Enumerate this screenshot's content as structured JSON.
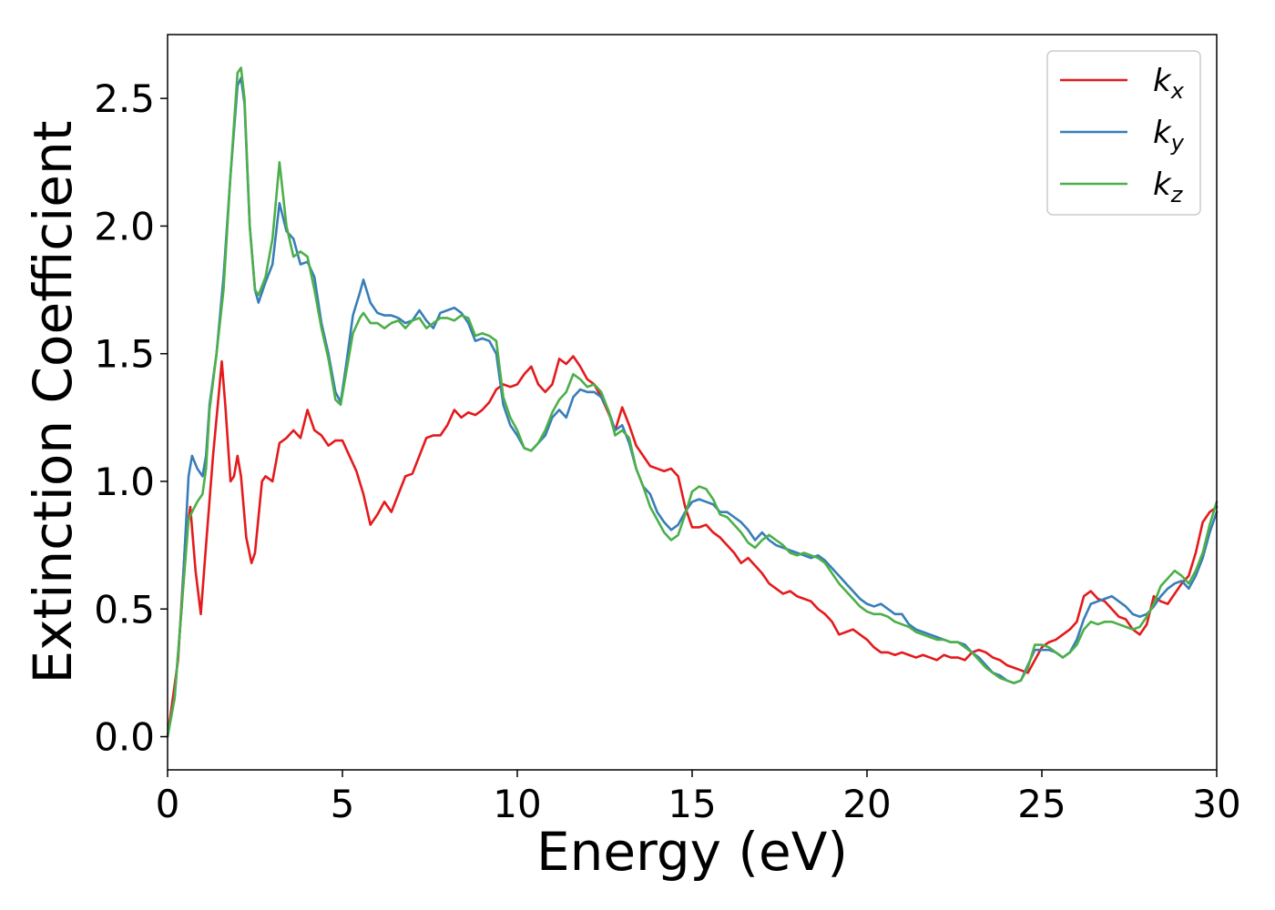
{
  "chart_data": {
    "type": "line",
    "title": "",
    "xlabel": "Energy (eV)",
    "ylabel": "Extinction Coefficient",
    "xlim": [
      0,
      30
    ],
    "ylim": [
      -0.13,
      2.75
    ],
    "x_ticks": [
      0,
      5,
      10,
      15,
      20,
      25,
      30
    ],
    "y_ticks": [
      0.0,
      0.5,
      1.0,
      1.5,
      2.0,
      2.5
    ],
    "x_tick_labels": [
      "0",
      "5",
      "10",
      "15",
      "20",
      "25",
      "30"
    ],
    "y_tick_labels": [
      "0.0",
      "0.5",
      "1.0",
      "1.5",
      "2.0",
      "2.5"
    ],
    "grid": false,
    "legend_position": "top-right",
    "series": [
      {
        "name": "k",
        "subscript": "x",
        "color": "#e41a1c",
        "x": [
          0,
          0.3,
          0.5,
          0.65,
          0.8,
          0.95,
          1.1,
          1.3,
          1.45,
          1.55,
          1.65,
          1.8,
          1.9,
          2.0,
          2.1,
          2.25,
          2.4,
          2.5,
          2.7,
          2.8,
          3.0,
          3.2,
          3.4,
          3.6,
          3.8,
          4.0,
          4.2,
          4.4,
          4.6,
          4.8,
          5.0,
          5.2,
          5.4,
          5.6,
          5.8,
          6.0,
          6.2,
          6.4,
          6.6,
          6.8,
          7.0,
          7.2,
          7.4,
          7.6,
          7.8,
          8.0,
          8.2,
          8.4,
          8.6,
          8.8,
          9.0,
          9.2,
          9.4,
          9.6,
          9.8,
          10.0,
          10.2,
          10.4,
          10.6,
          10.8,
          11.0,
          11.2,
          11.4,
          11.6,
          11.8,
          12.0,
          12.2,
          12.4,
          12.6,
          12.8,
          13.0,
          13.2,
          13.4,
          13.6,
          13.8,
          14.0,
          14.2,
          14.4,
          14.6,
          14.8,
          15.0,
          15.2,
          15.4,
          15.6,
          15.8,
          16.0,
          16.2,
          16.4,
          16.6,
          16.8,
          17.0,
          17.2,
          17.4,
          17.6,
          17.8,
          18.0,
          18.2,
          18.4,
          18.6,
          18.8,
          19.0,
          19.2,
          19.4,
          19.6,
          19.8,
          20.0,
          20.2,
          20.4,
          20.6,
          20.8,
          21.0,
          21.2,
          21.4,
          21.6,
          21.8,
          22.0,
          22.2,
          22.4,
          22.6,
          22.8,
          23.0,
          23.2,
          23.4,
          23.6,
          23.8,
          24.0,
          24.2,
          24.4,
          24.6,
          24.8,
          25.0,
          25.2,
          25.4,
          25.6,
          25.8,
          26.0,
          26.2,
          26.4,
          26.6,
          26.8,
          27.0,
          27.2,
          27.4,
          27.6,
          27.8,
          28.0,
          28.2,
          28.4,
          28.6,
          28.8,
          29.0,
          29.2,
          29.4,
          29.6,
          29.8,
          30.0
        ],
        "y": [
          0.0,
          0.3,
          0.75,
          0.9,
          0.65,
          0.48,
          0.75,
          1.1,
          1.32,
          1.47,
          1.3,
          1.0,
          1.02,
          1.1,
          1.02,
          0.78,
          0.68,
          0.72,
          1.0,
          1.02,
          1.0,
          1.15,
          1.17,
          1.2,
          1.17,
          1.28,
          1.2,
          1.18,
          1.14,
          1.16,
          1.16,
          1.1,
          1.04,
          0.95,
          0.83,
          0.87,
          0.92,
          0.88,
          0.95,
          1.02,
          1.03,
          1.1,
          1.17,
          1.18,
          1.18,
          1.22,
          1.28,
          1.25,
          1.27,
          1.26,
          1.28,
          1.31,
          1.36,
          1.38,
          1.37,
          1.38,
          1.42,
          1.45,
          1.38,
          1.35,
          1.38,
          1.48,
          1.46,
          1.49,
          1.45,
          1.4,
          1.38,
          1.33,
          1.27,
          1.2,
          1.29,
          1.22,
          1.14,
          1.1,
          1.06,
          1.05,
          1.04,
          1.05,
          1.02,
          0.9,
          0.82,
          0.82,
          0.83,
          0.8,
          0.78,
          0.75,
          0.72,
          0.68,
          0.7,
          0.67,
          0.64,
          0.6,
          0.58,
          0.56,
          0.57,
          0.55,
          0.54,
          0.53,
          0.5,
          0.48,
          0.45,
          0.4,
          0.41,
          0.42,
          0.4,
          0.38,
          0.35,
          0.33,
          0.33,
          0.32,
          0.33,
          0.32,
          0.31,
          0.32,
          0.31,
          0.3,
          0.32,
          0.31,
          0.31,
          0.3,
          0.33,
          0.34,
          0.33,
          0.31,
          0.3,
          0.28,
          0.27,
          0.26,
          0.25,
          0.3,
          0.35,
          0.37,
          0.38,
          0.4,
          0.42,
          0.45,
          0.55,
          0.57,
          0.54,
          0.53,
          0.5,
          0.47,
          0.46,
          0.42,
          0.4,
          0.44,
          0.55,
          0.53,
          0.52,
          0.56,
          0.6,
          0.63,
          0.72,
          0.84,
          0.88,
          0.9
        ]
      },
      {
        "name": "k",
        "subscript": "y",
        "color": "#377eb8",
        "x": [
          0,
          0.2,
          0.4,
          0.6,
          0.7,
          0.85,
          1.0,
          1.1,
          1.2,
          1.4,
          1.6,
          1.8,
          2.0,
          2.1,
          2.2,
          2.35,
          2.5,
          2.6,
          2.8,
          3.0,
          3.2,
          3.4,
          3.6,
          3.8,
          4.0,
          4.2,
          4.4,
          4.6,
          4.8,
          4.95,
          5.1,
          5.3,
          5.5,
          5.6,
          5.8,
          6.0,
          6.2,
          6.4,
          6.6,
          6.8,
          7.0,
          7.2,
          7.4,
          7.6,
          7.8,
          8.0,
          8.2,
          8.4,
          8.6,
          8.8,
          9.0,
          9.2,
          9.4,
          9.6,
          9.8,
          10.0,
          10.2,
          10.4,
          10.6,
          10.8,
          11.0,
          11.2,
          11.4,
          11.6,
          11.8,
          12.0,
          12.2,
          12.4,
          12.6,
          12.8,
          13.0,
          13.2,
          13.4,
          13.6,
          13.8,
          14.0,
          14.2,
          14.4,
          14.6,
          14.8,
          15.0,
          15.2,
          15.4,
          15.6,
          15.8,
          16.0,
          16.2,
          16.4,
          16.6,
          16.8,
          17.0,
          17.2,
          17.4,
          17.6,
          17.8,
          18.0,
          18.2,
          18.4,
          18.6,
          18.8,
          19.0,
          19.2,
          19.4,
          19.6,
          19.8,
          20.0,
          20.2,
          20.4,
          20.6,
          20.8,
          21.0,
          21.2,
          21.4,
          21.6,
          21.8,
          22.0,
          22.2,
          22.4,
          22.6,
          22.8,
          23.0,
          23.2,
          23.4,
          23.6,
          23.8,
          24.0,
          24.2,
          24.4,
          24.6,
          24.8,
          25.0,
          25.2,
          25.4,
          25.6,
          25.8,
          26.0,
          26.2,
          26.4,
          26.6,
          26.8,
          27.0,
          27.2,
          27.4,
          27.6,
          27.8,
          28.0,
          28.2,
          28.4,
          28.6,
          28.8,
          29.0,
          29.2,
          29.4,
          29.6,
          29.8,
          30.0
        ],
        "y": [
          0.0,
          0.15,
          0.5,
          1.02,
          1.1,
          1.05,
          1.02,
          1.1,
          1.3,
          1.5,
          1.8,
          2.2,
          2.55,
          2.58,
          2.48,
          2.0,
          1.75,
          1.7,
          1.78,
          1.85,
          2.09,
          1.98,
          1.95,
          1.85,
          1.86,
          1.8,
          1.62,
          1.5,
          1.35,
          1.31,
          1.45,
          1.65,
          1.74,
          1.79,
          1.7,
          1.66,
          1.65,
          1.65,
          1.64,
          1.62,
          1.63,
          1.67,
          1.63,
          1.6,
          1.66,
          1.67,
          1.68,
          1.66,
          1.62,
          1.55,
          1.56,
          1.55,
          1.5,
          1.3,
          1.22,
          1.18,
          1.13,
          1.12,
          1.15,
          1.18,
          1.25,
          1.28,
          1.25,
          1.33,
          1.36,
          1.35,
          1.35,
          1.33,
          1.28,
          1.2,
          1.22,
          1.15,
          1.05,
          0.98,
          0.95,
          0.88,
          0.84,
          0.81,
          0.83,
          0.88,
          0.92,
          0.93,
          0.92,
          0.91,
          0.88,
          0.88,
          0.86,
          0.84,
          0.81,
          0.77,
          0.8,
          0.77,
          0.75,
          0.74,
          0.73,
          0.72,
          0.71,
          0.7,
          0.71,
          0.69,
          0.66,
          0.63,
          0.6,
          0.57,
          0.54,
          0.52,
          0.51,
          0.52,
          0.5,
          0.48,
          0.48,
          0.44,
          0.42,
          0.41,
          0.4,
          0.39,
          0.38,
          0.37,
          0.37,
          0.36,
          0.33,
          0.31,
          0.28,
          0.25,
          0.24,
          0.22,
          0.21,
          0.22,
          0.28,
          0.34,
          0.34,
          0.34,
          0.33,
          0.31,
          0.33,
          0.38,
          0.46,
          0.52,
          0.53,
          0.54,
          0.55,
          0.53,
          0.51,
          0.48,
          0.47,
          0.48,
          0.51,
          0.55,
          0.58,
          0.6,
          0.61,
          0.58,
          0.63,
          0.7,
          0.8,
          0.88
        ]
      },
      {
        "name": "k",
        "subscript": "z",
        "color": "#4daf4a",
        "x": [
          0,
          0.2,
          0.4,
          0.6,
          0.7,
          0.85,
          1.0,
          1.1,
          1.2,
          1.4,
          1.6,
          1.8,
          2.0,
          2.1,
          2.2,
          2.35,
          2.5,
          2.6,
          2.8,
          3.0,
          3.2,
          3.4,
          3.6,
          3.8,
          4.0,
          4.2,
          4.4,
          4.6,
          4.8,
          4.95,
          5.1,
          5.3,
          5.5,
          5.6,
          5.8,
          6.0,
          6.2,
          6.4,
          6.6,
          6.8,
          7.0,
          7.2,
          7.4,
          7.6,
          7.8,
          8.0,
          8.2,
          8.4,
          8.6,
          8.8,
          9.0,
          9.2,
          9.4,
          9.6,
          9.8,
          10.0,
          10.2,
          10.4,
          10.6,
          10.8,
          11.0,
          11.2,
          11.4,
          11.6,
          11.8,
          12.0,
          12.2,
          12.4,
          12.6,
          12.8,
          13.0,
          13.2,
          13.4,
          13.6,
          13.8,
          14.0,
          14.2,
          14.4,
          14.6,
          14.8,
          15.0,
          15.2,
          15.4,
          15.6,
          15.8,
          16.0,
          16.2,
          16.4,
          16.6,
          16.8,
          17.0,
          17.2,
          17.4,
          17.6,
          17.8,
          18.0,
          18.2,
          18.4,
          18.6,
          18.8,
          19.0,
          19.2,
          19.4,
          19.6,
          19.8,
          20.0,
          20.2,
          20.4,
          20.6,
          20.8,
          21.0,
          21.2,
          21.4,
          21.6,
          21.8,
          22.0,
          22.2,
          22.4,
          22.6,
          22.8,
          23.0,
          23.2,
          23.4,
          23.6,
          23.8,
          24.0,
          24.2,
          24.4,
          24.6,
          24.8,
          25.0,
          25.2,
          25.4,
          25.6,
          25.8,
          26.0,
          26.2,
          26.4,
          26.6,
          26.8,
          27.0,
          27.2,
          27.4,
          27.6,
          27.8,
          28.0,
          28.2,
          28.4,
          28.6,
          28.8,
          29.0,
          29.2,
          29.4,
          29.6,
          29.8,
          30.0
        ],
        "y": [
          0.0,
          0.15,
          0.5,
          0.85,
          0.88,
          0.92,
          0.95,
          1.05,
          1.28,
          1.5,
          1.75,
          2.2,
          2.6,
          2.62,
          2.5,
          2.0,
          1.75,
          1.73,
          1.8,
          1.95,
          2.25,
          2.0,
          1.88,
          1.9,
          1.88,
          1.75,
          1.6,
          1.48,
          1.32,
          1.3,
          1.42,
          1.58,
          1.64,
          1.66,
          1.62,
          1.62,
          1.6,
          1.62,
          1.63,
          1.6,
          1.63,
          1.64,
          1.6,
          1.62,
          1.64,
          1.64,
          1.63,
          1.65,
          1.64,
          1.57,
          1.58,
          1.57,
          1.55,
          1.33,
          1.25,
          1.2,
          1.13,
          1.12,
          1.15,
          1.2,
          1.27,
          1.32,
          1.35,
          1.42,
          1.4,
          1.37,
          1.38,
          1.35,
          1.28,
          1.18,
          1.2,
          1.17,
          1.05,
          0.98,
          0.9,
          0.85,
          0.8,
          0.77,
          0.79,
          0.87,
          0.96,
          0.98,
          0.97,
          0.93,
          0.87,
          0.86,
          0.83,
          0.8,
          0.76,
          0.74,
          0.77,
          0.79,
          0.77,
          0.75,
          0.72,
          0.71,
          0.72,
          0.71,
          0.7,
          0.68,
          0.64,
          0.6,
          0.57,
          0.54,
          0.51,
          0.49,
          0.48,
          0.48,
          0.47,
          0.45,
          0.44,
          0.43,
          0.41,
          0.4,
          0.39,
          0.38,
          0.38,
          0.37,
          0.37,
          0.35,
          0.33,
          0.3,
          0.27,
          0.25,
          0.23,
          0.22,
          0.21,
          0.22,
          0.27,
          0.36,
          0.36,
          0.35,
          0.33,
          0.31,
          0.33,
          0.36,
          0.42,
          0.45,
          0.44,
          0.45,
          0.45,
          0.44,
          0.43,
          0.42,
          0.43,
          0.47,
          0.52,
          0.59,
          0.62,
          0.65,
          0.63,
          0.6,
          0.65,
          0.72,
          0.83,
          0.92
        ]
      }
    ]
  }
}
